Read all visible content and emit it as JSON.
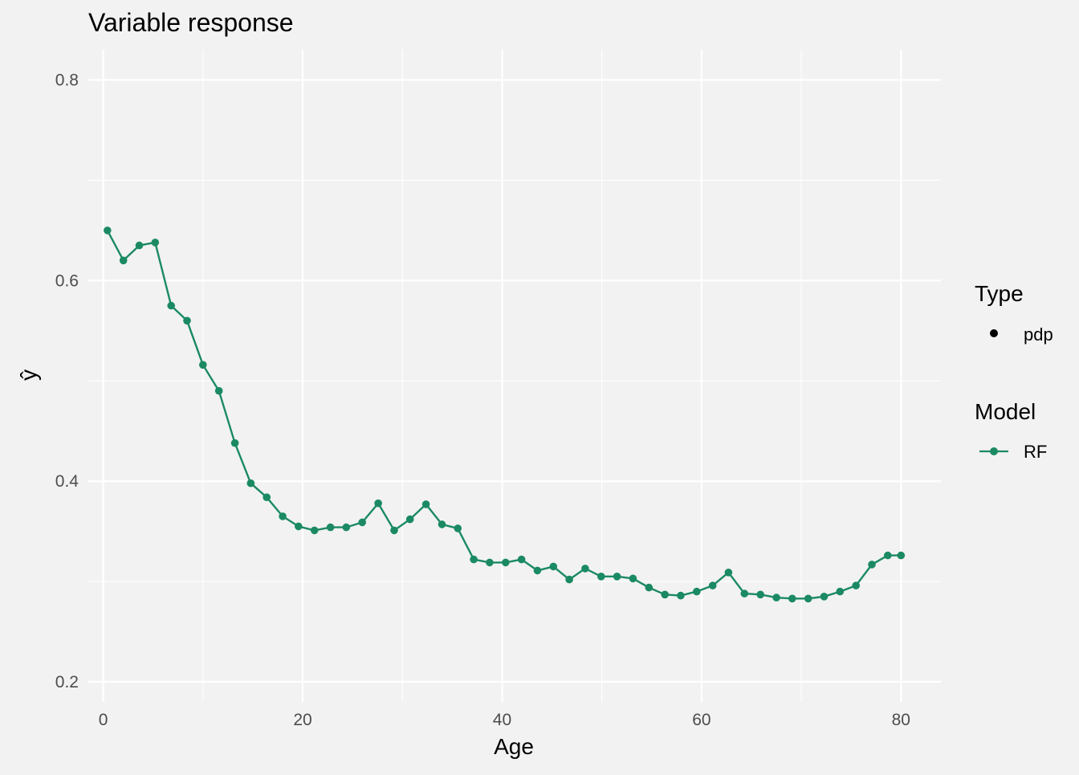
{
  "chart_data": {
    "type": "line",
    "title": "Variable response",
    "xlabel": "Age",
    "ylabel": "ŷ",
    "xlim": [
      -1.5,
      84
    ],
    "ylim": [
      0.18,
      0.83
    ],
    "x_ticks": [
      0,
      20,
      40,
      60,
      80
    ],
    "y_ticks": [
      0.2,
      0.4,
      0.6,
      0.8
    ],
    "x_tick_labels": [
      "0",
      "20",
      "40",
      "60",
      "80"
    ],
    "y_tick_labels": [
      "0.2",
      "0.4",
      "0.6",
      "0.8"
    ],
    "grid": true,
    "legend_position": "right",
    "legend": {
      "type_title": "Type",
      "type_items": [
        "pdp"
      ],
      "model_title": "Model",
      "model_items": [
        "RF"
      ]
    },
    "colors": {
      "background": "#f2f2f2",
      "grid": "#ffffff",
      "series": "#1b8a63",
      "text": "#000000",
      "tick_text": "#4d4d4d"
    },
    "series": [
      {
        "name": "RF",
        "x": [
          0.42,
          2.02,
          3.61,
          5.21,
          6.81,
          8.4,
          10.0,
          11.6,
          13.2,
          14.79,
          16.39,
          17.99,
          19.58,
          21.18,
          22.78,
          24.37,
          25.97,
          27.57,
          29.17,
          30.76,
          32.36,
          33.96,
          35.55,
          37.15,
          38.75,
          40.35,
          41.94,
          43.54,
          45.14,
          46.73,
          48.33,
          49.93,
          51.52,
          53.12,
          54.72,
          56.32,
          57.91,
          59.51,
          61.11,
          62.7,
          64.3,
          65.9,
          67.5,
          69.09,
          70.69,
          72.29,
          73.88,
          75.48,
          77.08,
          78.67,
          80.0
        ],
        "y": [
          0.65,
          0.62,
          0.635,
          0.638,
          0.575,
          0.56,
          0.516,
          0.49,
          0.438,
          0.398,
          0.384,
          0.365,
          0.355,
          0.351,
          0.354,
          0.354,
          0.359,
          0.378,
          0.351,
          0.362,
          0.377,
          0.357,
          0.353,
          0.322,
          0.319,
          0.319,
          0.322,
          0.311,
          0.315,
          0.302,
          0.313,
          0.305,
          0.305,
          0.303,
          0.294,
          0.287,
          0.286,
          0.29,
          0.296,
          0.309,
          0.288,
          0.287,
          0.284,
          0.283,
          0.283,
          0.285,
          0.29,
          0.296,
          0.317,
          0.326,
          0.326
        ]
      }
    ]
  }
}
